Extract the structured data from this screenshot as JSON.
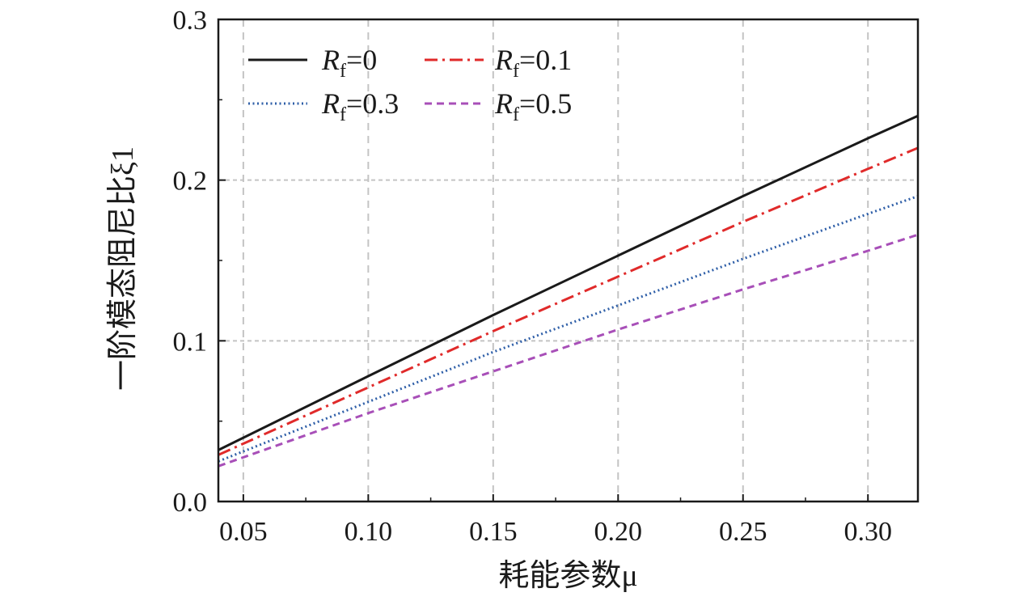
{
  "chart_data": {
    "type": "line",
    "xlabel": "耗能参数μ",
    "ylabel": "一阶模态阻尼比ξ1",
    "xlim": [
      0.04,
      0.32
    ],
    "ylim": [
      0.0,
      0.3
    ],
    "x_ticks": [
      "0.05",
      "0.10",
      "0.15",
      "0.20",
      "0.25",
      "0.30"
    ],
    "y_ticks": [
      "0.0",
      "0.1",
      "0.2",
      "0.3"
    ],
    "grid": true,
    "legend_position": "top",
    "legend_columns": 2,
    "series": [
      {
        "name": "Rf=0",
        "name_main": "R",
        "name_sub": "f",
        "name_value": "=0",
        "color": "#1a1a1a",
        "style": "solid",
        "x": [
          0.04,
          0.1,
          0.15,
          0.2,
          0.25,
          0.3,
          0.32
        ],
        "y": [
          0.032,
          0.078,
          0.116,
          0.153,
          0.19,
          0.226,
          0.24
        ]
      },
      {
        "name": "Rf=0.1",
        "name_main": "R",
        "name_sub": "f",
        "name_value": "=0.1",
        "color": "#e02a2a",
        "style": "dash-dot",
        "x": [
          0.04,
          0.1,
          0.15,
          0.2,
          0.25,
          0.3,
          0.32
        ],
        "y": [
          0.029,
          0.071,
          0.106,
          0.14,
          0.174,
          0.207,
          0.22
        ]
      },
      {
        "name": "Rf=0.3",
        "name_main": "R",
        "name_sub": "f",
        "name_value": "=0.3",
        "color": "#2f5fa8",
        "style": "dotted",
        "x": [
          0.04,
          0.1,
          0.15,
          0.2,
          0.25,
          0.3,
          0.32
        ],
        "y": [
          0.025,
          0.062,
          0.093,
          0.122,
          0.151,
          0.179,
          0.19
        ]
      },
      {
        "name": "Rf=0.5",
        "name_main": "R",
        "name_sub": "f",
        "name_value": "=0.5",
        "color": "#a84fb8",
        "style": "dashed",
        "x": [
          0.04,
          0.1,
          0.15,
          0.2,
          0.25,
          0.3,
          0.32
        ],
        "y": [
          0.022,
          0.055,
          0.081,
          0.107,
          0.132,
          0.156,
          0.166
        ]
      }
    ]
  }
}
